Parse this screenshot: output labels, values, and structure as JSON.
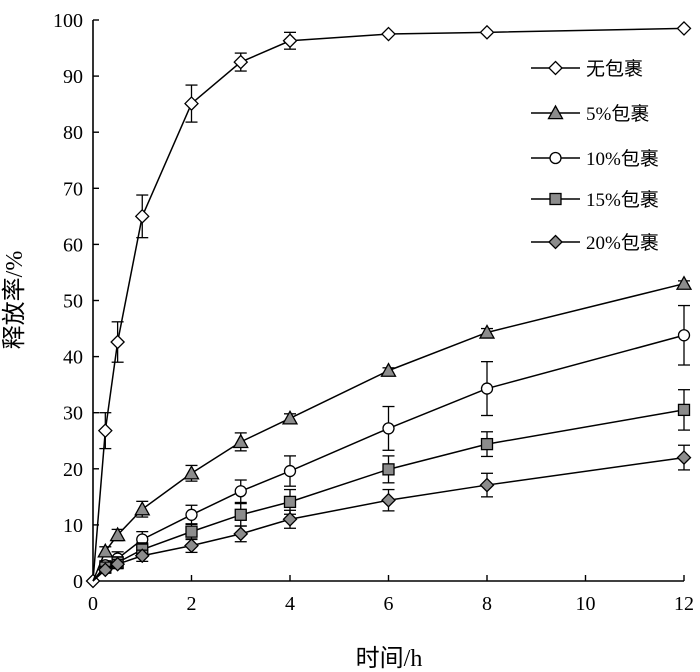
{
  "chart_data": {
    "type": "line",
    "title": "",
    "xlabel": "时间/h",
    "ylabel": "释放率/%",
    "xlim": [
      0,
      12
    ],
    "ylim": [
      0,
      100
    ],
    "xticks": [
      0,
      2,
      4,
      6,
      8,
      10,
      12
    ],
    "yticks": [
      0,
      10,
      20,
      30,
      40,
      50,
      60,
      70,
      80,
      90,
      100
    ],
    "grid": false,
    "legend_position": "top-right",
    "series": [
      {
        "name": "无包裹",
        "marker": "diamond-open",
        "x": [
          0,
          0.25,
          0.5,
          1,
          2,
          3,
          4,
          6,
          8,
          12
        ],
        "y": [
          0,
          26.8,
          42.6,
          65.0,
          85.1,
          92.5,
          96.3,
          97.5,
          97.8,
          98.5
        ],
        "err": [
          0,
          3.2,
          3.6,
          3.8,
          3.3,
          1.6,
          1.5,
          0,
          0,
          0
        ]
      },
      {
        "name": "5%包裹",
        "marker": "triangle-filled",
        "x": [
          0,
          0.25,
          0.5,
          1,
          2,
          3,
          4,
          6,
          8,
          12
        ],
        "y": [
          0,
          5.3,
          8.2,
          12.8,
          19.2,
          24.8,
          29.0,
          37.5,
          44.3,
          53.0
        ],
        "err": [
          0,
          0.8,
          1.0,
          1.4,
          1.4,
          1.6,
          0.8,
          0.5,
          0.7,
          0.5
        ]
      },
      {
        "name": "10%包裹",
        "marker": "circle-open",
        "x": [
          0,
          0.25,
          0.5,
          1,
          2,
          3,
          4,
          6,
          8,
          12
        ],
        "y": [
          0,
          2.8,
          4.0,
          7.4,
          11.8,
          16.0,
          19.6,
          27.2,
          34.3,
          43.8
        ],
        "err": [
          0,
          0.8,
          1.2,
          1.4,
          1.7,
          2.0,
          2.7,
          3.9,
          4.8,
          5.3
        ]
      },
      {
        "name": "15%包裹",
        "marker": "square-filled",
        "x": [
          0,
          0.25,
          0.5,
          1,
          2,
          3,
          4,
          6,
          8,
          12
        ],
        "y": [
          0,
          2.4,
          3.3,
          5.6,
          8.8,
          11.8,
          14.1,
          19.9,
          24.4,
          30.5
        ],
        "err": [
          0,
          0.6,
          1.0,
          1.2,
          1.4,
          2.0,
          2.2,
          2.4,
          2.2,
          3.6
        ]
      },
      {
        "name": "20%包裹",
        "marker": "diamond-filled",
        "x": [
          0,
          0.25,
          0.5,
          1,
          2,
          3,
          4,
          6,
          8,
          12
        ],
        "y": [
          0,
          2.0,
          3.0,
          4.5,
          6.3,
          8.4,
          11.0,
          14.4,
          17.1,
          22.0
        ],
        "err": [
          0,
          0.6,
          0.8,
          1.0,
          1.2,
          1.4,
          1.6,
          1.9,
          2.1,
          2.2
        ]
      }
    ]
  },
  "colors": {
    "line": "#000000",
    "filled_marker": "#8c8c8c",
    "open_marker": "#ffffff"
  }
}
